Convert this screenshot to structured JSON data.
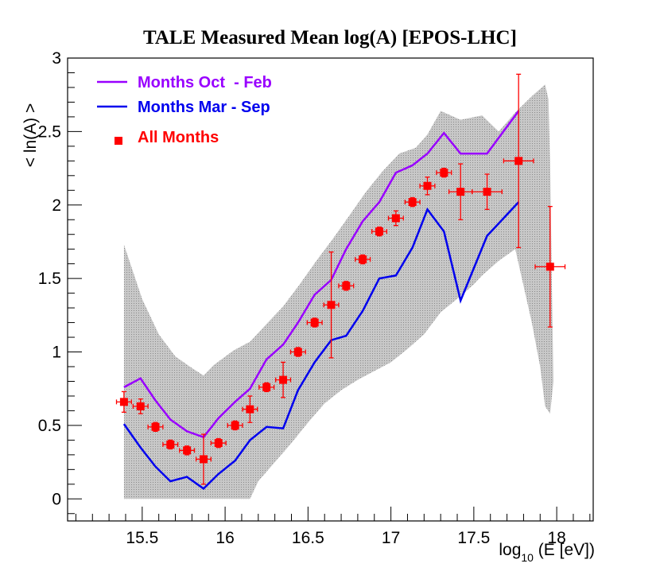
{
  "chart_data": {
    "type": "line",
    "title": "TALE Measured Mean log(A) [EPOS-LHC]",
    "xlabel": "log",
    "xlabel_sub": "10",
    "xlabel_tail": " (E [eV])",
    "ylabel": "< ln(A) >",
    "xlim": [
      15.05,
      18.22
    ],
    "ylim": [
      -0.15,
      3.0
    ],
    "x_ticks": [
      15.5,
      16,
      16.5,
      17,
      17.5,
      18
    ],
    "x_tick_labels": [
      "15.5",
      "16",
      "16.5",
      "17",
      "17.5",
      "18"
    ],
    "y_ticks": [
      0,
      0.5,
      1,
      1.5,
      2,
      2.5,
      3
    ],
    "y_tick_labels": [
      "0",
      "0.5",
      "1",
      "1.5",
      "2",
      "2.5",
      "3"
    ],
    "legend_position": "top-left",
    "colors": {
      "oct_feb": "#9900ff",
      "mar_sep": "#0000ee",
      "all_months": "#ff0000",
      "band_fill": "#c8c8c8",
      "band_dot": "#8a8a8a"
    },
    "series": [
      {
        "name": "Months Oct  - Feb",
        "kind": "line",
        "x": [
          15.39,
          15.49,
          15.58,
          15.67,
          15.77,
          15.87,
          15.96,
          16.06,
          16.15,
          16.25,
          16.35,
          16.44,
          16.54,
          16.64,
          16.73,
          16.83,
          16.93,
          17.03,
          17.13,
          17.22,
          17.32,
          17.42,
          17.58,
          17.77
        ],
        "y": [
          0.76,
          0.82,
          0.67,
          0.54,
          0.46,
          0.42,
          0.55,
          0.66,
          0.75,
          0.95,
          1.05,
          1.2,
          1.39,
          1.49,
          1.7,
          1.89,
          2.02,
          2.22,
          2.27,
          2.35,
          2.49,
          2.35,
          2.35,
          2.64
        ]
      },
      {
        "name": "Months Mar - Sep",
        "kind": "line",
        "x": [
          15.39,
          15.49,
          15.58,
          15.67,
          15.77,
          15.87,
          15.96,
          16.06,
          16.15,
          16.25,
          16.35,
          16.44,
          16.54,
          16.64,
          16.73,
          16.83,
          16.93,
          17.03,
          17.13,
          17.22,
          17.32,
          17.42,
          17.58,
          17.77
        ],
        "y": [
          0.51,
          0.35,
          0.22,
          0.12,
          0.15,
          0.07,
          0.17,
          0.26,
          0.4,
          0.49,
          0.48,
          0.74,
          0.93,
          1.08,
          1.11,
          1.28,
          1.5,
          1.52,
          1.71,
          1.97,
          1.82,
          1.35,
          1.79,
          2.02
        ]
      },
      {
        "name": "All Months",
        "kind": "points",
        "x": [
          15.39,
          15.49,
          15.58,
          15.67,
          15.77,
          15.87,
          15.96,
          16.06,
          16.15,
          16.25,
          16.35,
          16.44,
          16.54,
          16.64,
          16.73,
          16.83,
          16.93,
          17.03,
          17.13,
          17.22,
          17.32,
          17.42,
          17.58,
          17.77,
          17.96
        ],
        "y": [
          0.66,
          0.63,
          0.49,
          0.37,
          0.33,
          0.27,
          0.38,
          0.5,
          0.61,
          0.76,
          0.81,
          1.0,
          1.2,
          1.32,
          1.45,
          1.63,
          1.82,
          1.91,
          2.02,
          2.13,
          2.22,
          2.09,
          2.09,
          2.3,
          1.58
        ],
        "x_err": [
          0.045,
          0.045,
          0.045,
          0.045,
          0.045,
          0.045,
          0.045,
          0.045,
          0.045,
          0.045,
          0.045,
          0.045,
          0.045,
          0.045,
          0.045,
          0.045,
          0.045,
          0.045,
          0.045,
          0.045,
          0.045,
          0.07,
          0.09,
          0.09,
          0.09
        ],
        "y_err": [
          0.07,
          0.05,
          0.03,
          0.03,
          0.03,
          0.17,
          0.03,
          0.03,
          0.09,
          0.03,
          0.12,
          0.03,
          0.03,
          0.36,
          0.03,
          0.03,
          0.03,
          0.05,
          0.03,
          0.06,
          0.03,
          0.19,
          0.12,
          0.59,
          0.41
        ]
      }
    ],
    "systematic_band": {
      "upper": [
        [
          15.39,
          1.73
        ],
        [
          15.5,
          1.36
        ],
        [
          15.6,
          1.12
        ],
        [
          15.7,
          0.97
        ],
        [
          15.8,
          0.89
        ],
        [
          15.87,
          0.84
        ],
        [
          15.93,
          0.91
        ],
        [
          16.05,
          1.01
        ],
        [
          16.15,
          1.07
        ],
        [
          16.25,
          1.19
        ],
        [
          16.35,
          1.31
        ],
        [
          16.45,
          1.46
        ],
        [
          16.55,
          1.62
        ],
        [
          16.65,
          1.77
        ],
        [
          16.75,
          1.93
        ],
        [
          16.85,
          2.09
        ],
        [
          16.95,
          2.23
        ],
        [
          17.05,
          2.35
        ],
        [
          17.15,
          2.39
        ],
        [
          17.22,
          2.48
        ],
        [
          17.3,
          2.64
        ],
        [
          17.42,
          2.58
        ],
        [
          17.55,
          2.61
        ],
        [
          17.65,
          2.5
        ],
        [
          17.75,
          2.63
        ],
        [
          17.85,
          2.74
        ],
        [
          17.9,
          2.79
        ],
        [
          17.93,
          2.82
        ],
        [
          17.95,
          2.72
        ],
        [
          17.96,
          2.3
        ],
        [
          17.97,
          1.5
        ],
        [
          17.98,
          0.8
        ]
      ],
      "lower": [
        [
          17.98,
          0.8
        ],
        [
          17.96,
          0.58
        ],
        [
          17.93,
          0.63
        ],
        [
          17.9,
          0.9
        ],
        [
          17.85,
          1.2
        ],
        [
          17.8,
          1.45
        ],
        [
          17.75,
          1.7
        ],
        [
          17.65,
          1.62
        ],
        [
          17.55,
          1.52
        ],
        [
          17.5,
          1.46
        ],
        [
          17.42,
          1.38
        ],
        [
          17.3,
          1.27
        ],
        [
          17.2,
          1.12
        ],
        [
          17.1,
          1.02
        ],
        [
          17.0,
          0.93
        ],
        [
          16.9,
          0.87
        ],
        [
          16.8,
          0.81
        ],
        [
          16.7,
          0.74
        ],
        [
          16.6,
          0.65
        ],
        [
          16.5,
          0.52
        ],
        [
          16.4,
          0.38
        ],
        [
          16.3,
          0.25
        ],
        [
          16.2,
          0.12
        ],
        [
          16.15,
          0.0
        ],
        [
          15.39,
          0.0
        ]
      ]
    }
  }
}
